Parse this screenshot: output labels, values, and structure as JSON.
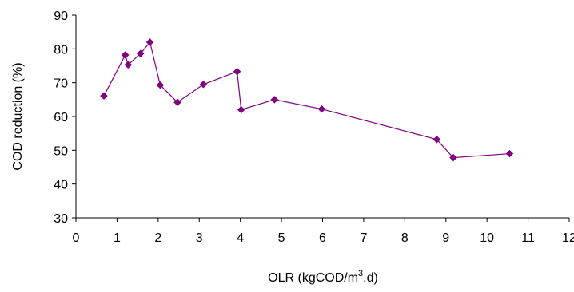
{
  "chart_data": {
    "type": "line",
    "title": "",
    "xlabel": "OLR (kgCOD/m",
    "xlabel_sup": "3",
    "xlabel_suffix": ".d)",
    "ylabel": "COD reduction (%)",
    "xlim": [
      0,
      12
    ],
    "ylim": [
      30,
      90
    ],
    "x_ticks": [
      "0",
      "1",
      "2",
      "3",
      "4",
      "5",
      "6",
      "7",
      "8",
      "9",
      "10",
      "11",
      "12"
    ],
    "y_ticks": [
      "30",
      "40",
      "50",
      "60",
      "70",
      "80",
      "90"
    ],
    "grid": false,
    "legend": "none",
    "marker": "diamond",
    "series": [
      {
        "color": "#800080",
        "x": [
          0.68,
          1.2,
          1.27,
          1.57,
          1.8,
          2.05,
          2.47,
          3.1,
          3.92,
          4.02,
          4.83,
          5.98,
          8.78,
          9.18,
          10.55
        ],
        "y": [
          66.1,
          78.2,
          75.3,
          78.6,
          82,
          69.3,
          64.2,
          69.5,
          73.3,
          62,
          65,
          62.2,
          53.2,
          47.8,
          49
        ]
      }
    ]
  }
}
